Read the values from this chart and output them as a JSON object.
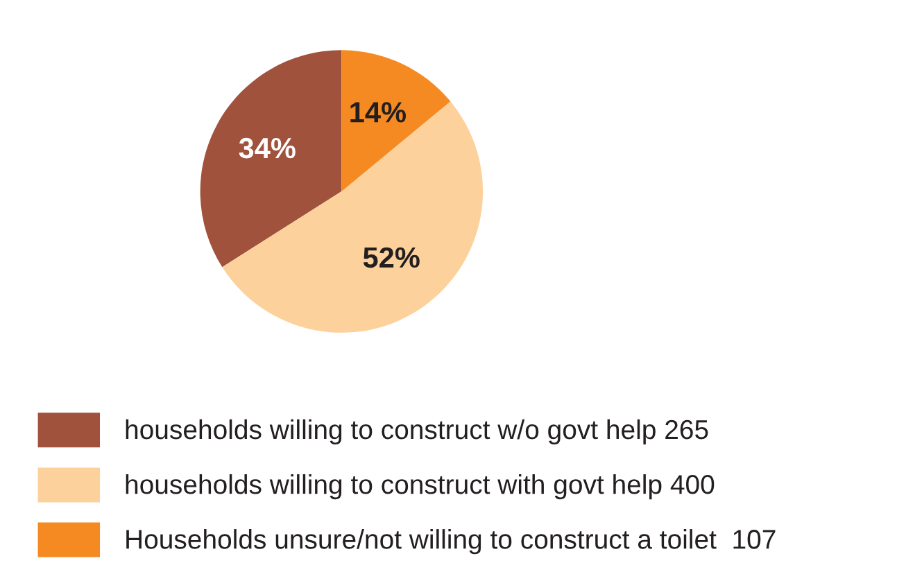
{
  "chart_data": {
    "type": "pie",
    "categories": [
      "households willing to construct w/o govt help 265",
      "households willing to construct with govt help 400",
      "Households unsure/not willing to construct a toilet  107"
    ],
    "values": [
      34,
      52,
      14
    ],
    "value_labels": [
      "34%",
      "52%",
      "14%"
    ],
    "colors": [
      "#a0523d",
      "#fdd19b",
      "#f58a22"
    ],
    "legend": "bottom"
  }
}
